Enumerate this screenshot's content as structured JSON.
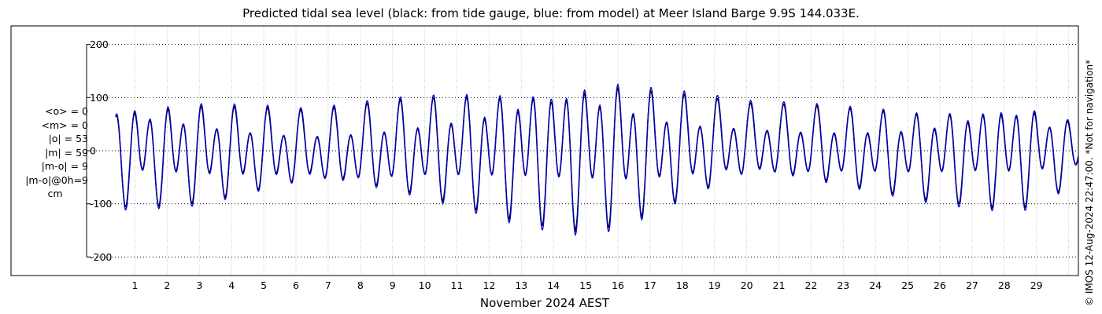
{
  "chart_data": {
    "type": "line",
    "title": "Predicted tidal sea level (black: from tide gauge, blue: from model) at Meer Island Barge 9.9S 144.033E.",
    "xlabel": "November 2024 AEST",
    "ylabel": "",
    "x_ticks": [
      "1",
      "2",
      "3",
      "4",
      "5",
      "6",
      "7",
      "8",
      "9",
      "10",
      "11",
      "12",
      "13",
      "14",
      "15",
      "16",
      "17",
      "18",
      "19",
      "20",
      "21",
      "22",
      "23",
      "24",
      "25",
      "26",
      "27",
      "28",
      "29"
    ],
    "xlim_days": [
      0.1,
      30.3
    ],
    "ylim": [
      -235,
      235
    ],
    "y_ticks": [
      200,
      100,
      0,
      -100,
      -200
    ],
    "y_tick_labels": [
      "200",
      "100",
      "0",
      "-100",
      "-200"
    ],
    "grid": "dotted",
    "series": [
      {
        "name": "from tide gauge",
        "color": "#000000"
      },
      {
        "name": "from model",
        "color": "#0000d0"
      }
    ],
    "tidal_envelope": {
      "day": [
        0.4,
        3,
        6.5,
        10,
        12.5,
        14.5,
        16,
        17.5,
        20,
        23,
        25.5,
        28.5,
        30.3
      ],
      "high_water_cm": [
        88,
        85,
        72,
        100,
        110,
        130,
        130,
        112,
        100,
        80,
        65,
        92,
        50
      ],
      "low_water_cm": [
        -100,
        -98,
        -60,
        -85,
        -120,
        -140,
        -135,
        -100,
        -35,
        -65,
        -95,
        -105,
        -60
      ]
    }
  },
  "stats": {
    "mean_obs": "<o> = 0",
    "mean_model": "<m> = 0",
    "abs_obs": "|o| = 53",
    "abs_model": "|m| = 59",
    "abs_diff": "|m-o| = 9",
    "abs_diff_0h": "|m-o|@0h=9",
    "unit": "cm"
  },
  "copyright": "© IMOS 12-Aug-2024 22:47:00. *Not for navigation*"
}
